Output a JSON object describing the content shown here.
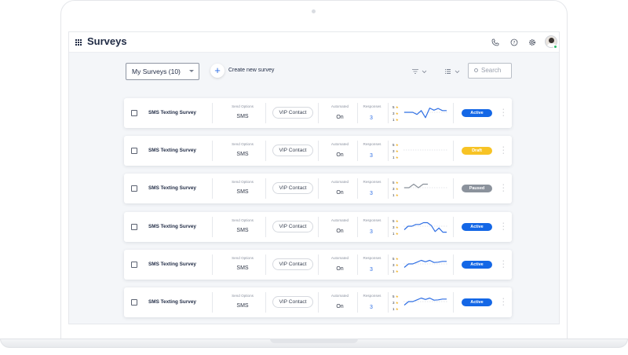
{
  "app": {
    "title": "Surveys"
  },
  "toolbar": {
    "dropdown_value": "My Surveys (10)",
    "create_label": "Create new survey",
    "search_placeholder": "Search"
  },
  "columns": {
    "send_options": "Send Options",
    "automated": "Automated",
    "responses": "Responses"
  },
  "chart_ticks": [
    "5",
    "3",
    "1"
  ],
  "status_colors": {
    "Active": "#1467e6",
    "Draft": "#f7c325",
    "Paused": "#8b929c"
  },
  "surveys": [
    {
      "name": "SMS Texting Survey",
      "send_option": "SMS",
      "contact": "VIP Contact",
      "automated": "On",
      "responses": "3",
      "status": "Active",
      "trend": [
        3,
        3,
        3,
        2.4,
        3.5,
        1.5,
        4.2,
        3.6,
        4.1,
        3.5,
        3.5
      ]
    },
    {
      "name": "SMS Texting Survey",
      "send_option": "SMS",
      "contact": "VIP Contact",
      "automated": "On",
      "responses": "3",
      "status": "Draft",
      "trend": []
    },
    {
      "name": "SMS Texting Survey",
      "send_option": "SMS",
      "contact": "VIP Contact",
      "automated": "On",
      "responses": "3",
      "status": "Paused",
      "trend": [
        3,
        3,
        4,
        3,
        4,
        4
      ]
    },
    {
      "name": "SMS Texting Survey",
      "send_option": "SMS",
      "contact": "VIP Contact",
      "automated": "On",
      "responses": "3",
      "status": "Active",
      "trend": [
        2,
        3,
        3,
        3.5,
        3.5,
        4,
        4,
        3.2,
        1.5,
        2.5,
        1.3,
        1.3
      ]
    },
    {
      "name": "SMS Texting Survey",
      "send_option": "SMS",
      "contact": "VIP Contact",
      "automated": "On",
      "responses": "3",
      "status": "Active",
      "trend": [
        2,
        3,
        3,
        3.5,
        4,
        3.6,
        4,
        3.4,
        3.5,
        3.7,
        3.7
      ]
    },
    {
      "name": "SMS Texting Survey",
      "send_option": "SMS",
      "contact": "VIP Contact",
      "automated": "On",
      "responses": "3",
      "status": "Active",
      "trend": [
        2,
        3,
        3,
        3.5,
        4,
        3.6,
        4,
        3.4,
        3.5,
        3.7,
        3.7
      ]
    }
  ]
}
